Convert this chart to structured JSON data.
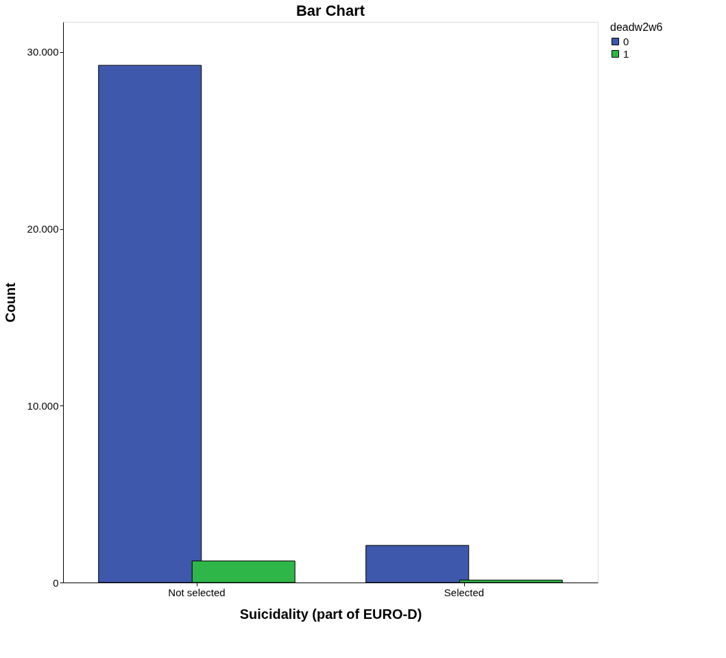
{
  "chart_data": {
    "type": "bar",
    "title": "Bar Chart",
    "xlabel": "Suicidality (part of EURO-D)",
    "ylabel": "Count",
    "legend_title": "deadw2w6",
    "categories": [
      "Not selected",
      "Selected"
    ],
    "series": [
      {
        "name": "0",
        "color": "#3e58ac",
        "values": [
          29250,
          2100
        ]
      },
      {
        "name": "1",
        "color": "#2fb648",
        "values": [
          1220,
          140
        ]
      }
    ],
    "ylim": [
      0,
      31700
    ],
    "yticks": [
      {
        "value": 0,
        "label": "0"
      },
      {
        "value": 10000,
        "label": "10.000"
      },
      {
        "value": 20000,
        "label": "20.000"
      },
      {
        "value": 30000,
        "label": "30.000"
      }
    ],
    "grid": false,
    "legend": "top right"
  }
}
